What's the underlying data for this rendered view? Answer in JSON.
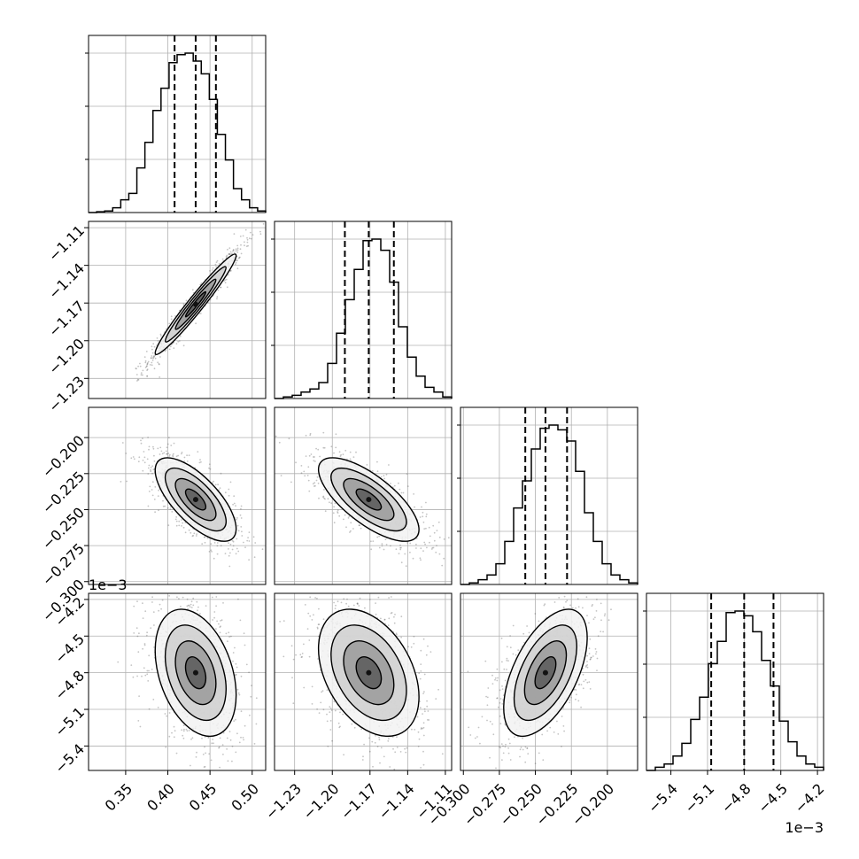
{
  "chart_data": {
    "type": "corner",
    "variables": [
      {
        "range": [
          0.306,
          0.516
        ],
        "ticks": [
          0.35,
          0.4,
          0.45,
          0.5
        ],
        "tick_labels": [
          "0.35",
          "0.40",
          "0.45",
          "0.50"
        ],
        "scale_label": ""
      },
      {
        "range": [
          -1.246,
          -1.105
        ],
        "ticks": [
          -1.23,
          -1.2,
          -1.17,
          -1.14,
          -1.11
        ],
        "tick_labels": [
          "−1.23",
          "−1.20",
          "−1.17",
          "−1.14",
          "−1.11"
        ],
        "scale_label": ""
      },
      {
        "range": [
          -0.302,
          -0.179
        ],
        "ticks": [
          -0.3,
          -0.275,
          -0.25,
          -0.225,
          -0.2
        ],
        "tick_labels": [
          "−0.300",
          "−0.275",
          "−0.250",
          "−0.225",
          "−0.200"
        ],
        "scale_label": ""
      },
      {
        "range": [
          -5.6,
          -4.15
        ],
        "ticks": [
          -5.4,
          -5.1,
          -4.8,
          -4.5,
          -4.2
        ],
        "tick_labels": [
          "−5.4",
          "−5.1",
          "−4.8",
          "−4.5",
          "−4.2"
        ],
        "scale_label": "1e−3"
      }
    ],
    "quantiles": [
      [
        0.408,
        0.433,
        0.457
      ],
      [
        -1.19,
        -1.171,
        -1.151
      ],
      [
        -0.257,
        -0.243,
        -0.228
      ],
      [
        -5.07,
        -4.8,
        -4.56
      ]
    ],
    "histograms": [
      [
        0.0,
        0.005,
        0.01,
        0.03,
        0.08,
        0.12,
        0.28,
        0.44,
        0.64,
        0.78,
        0.94,
        0.99,
        1.0,
        0.95,
        0.87,
        0.71,
        0.49,
        0.33,
        0.15,
        0.08,
        0.03,
        0.01
      ],
      [
        0.0,
        0.01,
        0.02,
        0.04,
        0.06,
        0.1,
        0.22,
        0.41,
        0.62,
        0.81,
        0.99,
        1.0,
        0.93,
        0.73,
        0.45,
        0.26,
        0.14,
        0.07,
        0.04,
        0.01
      ],
      [
        0.0,
        0.01,
        0.03,
        0.06,
        0.13,
        0.27,
        0.48,
        0.65,
        0.85,
        0.98,
        1.0,
        0.97,
        0.9,
        0.71,
        0.45,
        0.27,
        0.13,
        0.06,
        0.03,
        0.01
      ],
      [
        0.0,
        0.02,
        0.04,
        0.09,
        0.17,
        0.32,
        0.46,
        0.67,
        0.81,
        0.99,
        1.0,
        0.97,
        0.87,
        0.69,
        0.53,
        0.31,
        0.18,
        0.09,
        0.04,
        0.02
      ]
    ],
    "pairs": [
      {
        "row": 1,
        "col": 0,
        "center": [
          0.433,
          -1.171
        ],
        "sd": [
          0.024,
          0.02
        ],
        "corr": 0.97
      },
      {
        "row": 2,
        "col": 0,
        "center": [
          0.433,
          -0.243
        ],
        "sd": [
          0.024,
          0.0145
        ],
        "corr": -0.7
      },
      {
        "row": 2,
        "col": 1,
        "center": [
          -1.171,
          -0.243
        ],
        "sd": [
          0.02,
          0.0145
        ],
        "corr": -0.72
      },
      {
        "row": 3,
        "col": 0,
        "center": [
          0.433,
          -4.8
        ],
        "sd": [
          0.024,
          0.26
        ],
        "corr": -0.35
      },
      {
        "row": 3,
        "col": 1,
        "center": [
          -1.171,
          -4.8
        ],
        "sd": [
          0.02,
          0.26
        ],
        "corr": -0.38
      },
      {
        "row": 3,
        "col": 2,
        "center": [
          -0.243,
          -4.8
        ],
        "sd": [
          0.0145,
          0.26
        ],
        "corr": 0.55
      }
    ],
    "contour_levels": [
      0.5,
      1.0,
      1.5,
      2.0
    ],
    "grid": true,
    "colors": {
      "axis": "#000000",
      "grid": "#b0b0b0",
      "scatter": "#555555",
      "fill": "#000000",
      "line": "#000000"
    },
    "title": "",
    "xlabel": "",
    "ylabel": ""
  }
}
